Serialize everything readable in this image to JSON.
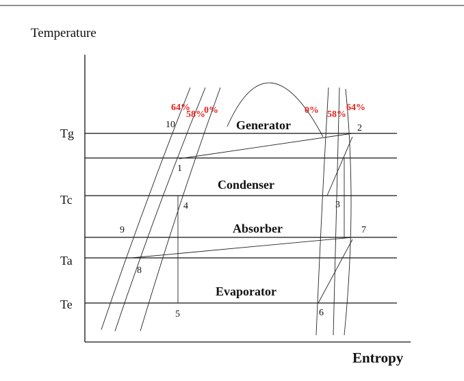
{
  "axes": {
    "y_label": "Temperature",
    "x_label": "Entropy"
  },
  "levels": [
    "Tg",
    "Tc",
    "Ta",
    "Te"
  ],
  "regions": [
    "Generator",
    "Condenser",
    "Absorber",
    "Evaporator"
  ],
  "points": [
    "10",
    "2",
    "1",
    "4",
    "3",
    "9",
    "7",
    "8",
    "5",
    "6"
  ],
  "concentrations": [
    "64%",
    "58%",
    "0%",
    "0%",
    "58%",
    "64%"
  ]
}
